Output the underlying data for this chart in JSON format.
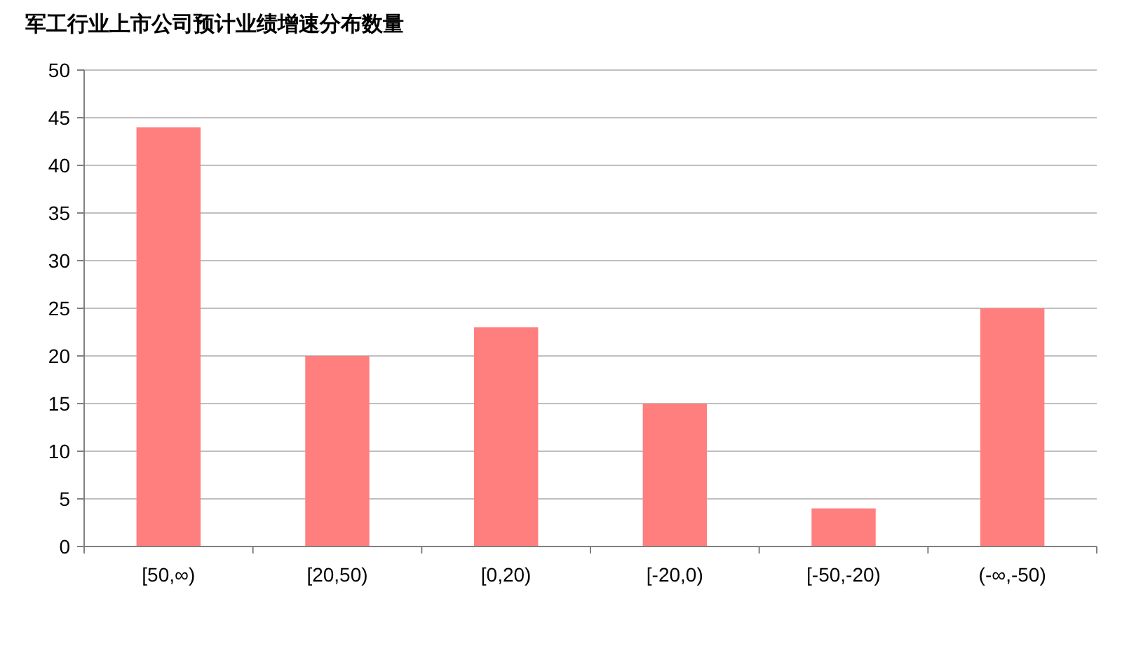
{
  "chart_data": {
    "type": "bar",
    "title": "军工行业上市公司预计业绩增速分布数量",
    "categories": [
      "[50,∞)",
      "[20,50)",
      "[0,20)",
      "[-20,0)",
      "[-50,-20)",
      "(-∞,-50)"
    ],
    "values": [
      44,
      20,
      23,
      15,
      4,
      25
    ],
    "color": "#ff7f7f",
    "ylim": [
      0,
      50
    ],
    "yticks": [
      0,
      5,
      10,
      15,
      20,
      25,
      30,
      35,
      40,
      45,
      50
    ],
    "grid": "y"
  }
}
